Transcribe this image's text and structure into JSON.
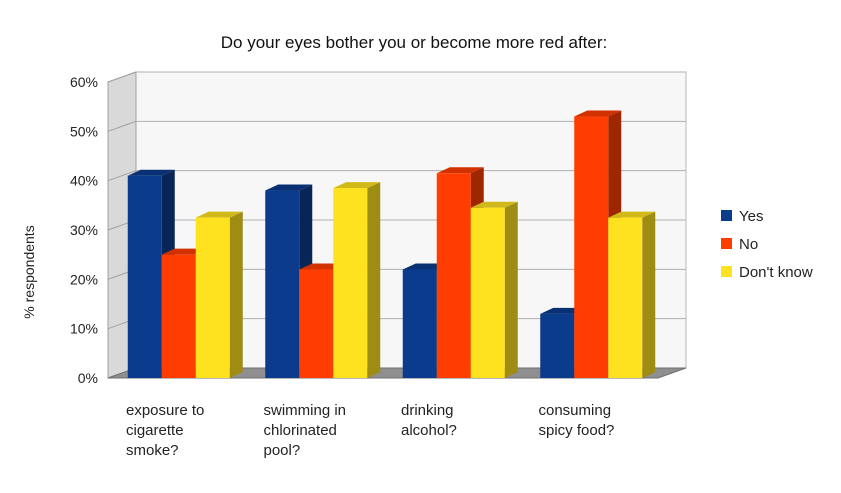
{
  "chart_data": {
    "type": "bar",
    "title": "Do your eyes bother you or become more red after:",
    "xlabel": "",
    "ylabel": "% respondents",
    "ylim": [
      0,
      60
    ],
    "yticks": [
      "0%",
      "10%",
      "20%",
      "30%",
      "40%",
      "50%",
      "60%"
    ],
    "categories": [
      [
        "exposure to",
        "cigarette",
        "smoke?"
      ],
      [
        "swimming in",
        "chlorinated",
        "pool?"
      ],
      [
        "drinking",
        "alcohol?"
      ],
      [
        "consuming",
        "spicy food?"
      ]
    ],
    "series": [
      {
        "name": "Yes",
        "color": "#0b3b8c",
        "values": [
          41,
          38,
          22,
          13
        ]
      },
      {
        "name": "No",
        "color": "#ff3d00",
        "values": [
          25,
          22,
          41.5,
          53
        ]
      },
      {
        "name": "Don't know",
        "color": "#ffe21f",
        "values": [
          32.5,
          38.5,
          34.5,
          32.5
        ]
      }
    ],
    "legend_position": "right",
    "grid": true,
    "style": "3d"
  }
}
